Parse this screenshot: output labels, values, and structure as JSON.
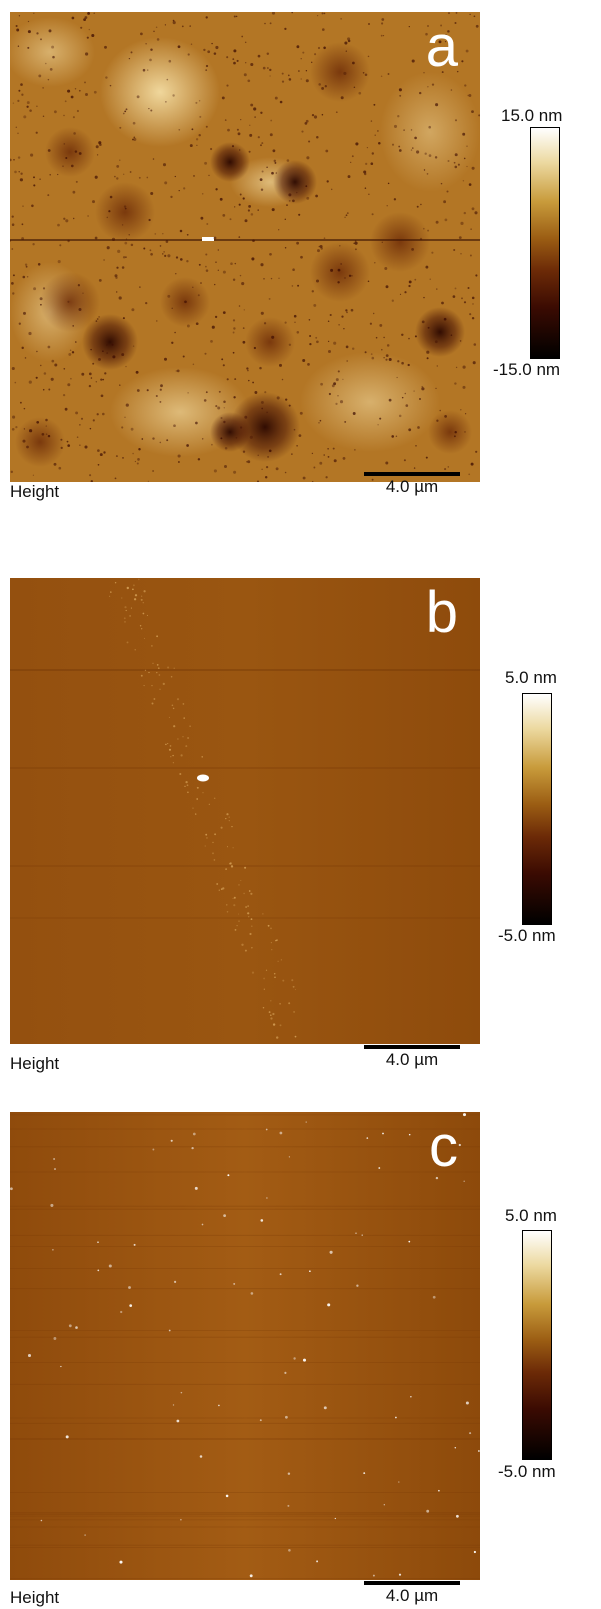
{
  "panels": [
    {
      "letter": "a",
      "caption": "Height",
      "scale_label": "4.0 µm",
      "colorbar_max": "15.0 nm",
      "colorbar_min": "-15.0 nm"
    },
    {
      "letter": "b",
      "caption": "Height",
      "scale_label": "4.0 µm",
      "colorbar_max": "5.0 nm",
      "colorbar_min": "-5.0 nm"
    },
    {
      "letter": "c",
      "caption": "Height",
      "scale_label": "4.0 µm",
      "colorbar_max": "5.0 nm",
      "colorbar_min": "-5.0 nm"
    }
  ],
  "colors": {
    "afm_base_a": "#b57a22",
    "afm_base_bc": "#9a5410",
    "bright": "#ffffff",
    "dark": "#000000"
  }
}
